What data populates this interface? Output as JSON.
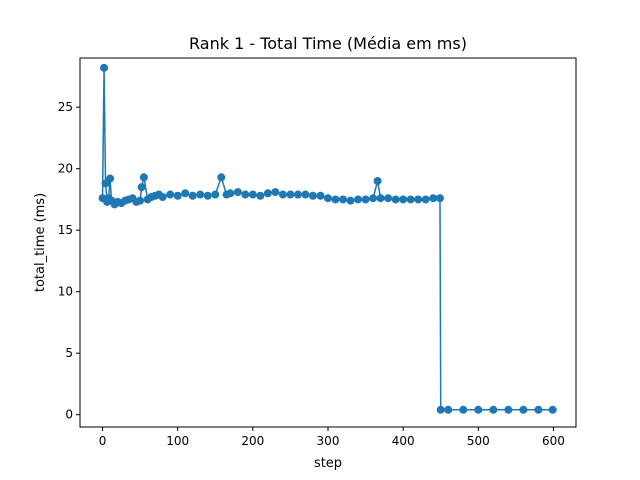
{
  "chart_data": {
    "type": "line",
    "title": "Rank 1 - Total Time (Média em ms)",
    "xlabel": "step",
    "ylabel": "total_time (ms)",
    "xlim": [
      -30,
      630
    ],
    "ylim": [
      -1,
      29
    ],
    "xticks": [
      0,
      100,
      200,
      300,
      400,
      500,
      600
    ],
    "yticks": [
      0,
      5,
      10,
      15,
      20,
      25
    ],
    "grid": false,
    "legend": "none",
    "series": [
      {
        "color": "#1f77b4",
        "marker": "circle",
        "x": [
          0,
          2,
          4,
          6,
          8,
          10,
          12,
          16,
          20,
          25,
          30,
          35,
          40,
          45,
          50,
          52,
          55,
          60,
          65,
          70,
          75,
          80,
          90,
          100,
          110,
          120,
          130,
          140,
          150,
          158,
          165,
          170,
          180,
          190,
          200,
          210,
          220,
          230,
          240,
          250,
          260,
          270,
          280,
          290,
          300,
          310,
          320,
          330,
          340,
          350,
          360,
          366,
          370,
          380,
          390,
          400,
          410,
          420,
          430,
          440,
          449,
          450,
          460,
          480,
          500,
          520,
          540,
          560,
          580,
          599
        ],
        "values": [
          17.6,
          28.2,
          18.8,
          17.3,
          17.6,
          19.2,
          17.4,
          17.1,
          17.3,
          17.2,
          17.4,
          17.5,
          17.6,
          17.3,
          17.4,
          18.5,
          19.3,
          17.5,
          17.7,
          17.8,
          17.9,
          17.7,
          17.9,
          17.8,
          18.0,
          17.8,
          17.9,
          17.8,
          17.9,
          19.3,
          17.9,
          18.0,
          18.1,
          17.9,
          17.9,
          17.8,
          18.0,
          18.1,
          17.9,
          17.9,
          17.9,
          17.9,
          17.8,
          17.8,
          17.6,
          17.5,
          17.5,
          17.4,
          17.5,
          17.5,
          17.6,
          19.0,
          17.6,
          17.6,
          17.5,
          17.5,
          17.5,
          17.5,
          17.5,
          17.6,
          17.6,
          0.4,
          0.4,
          0.4,
          0.4,
          0.4,
          0.4,
          0.4,
          0.4,
          0.4
        ]
      }
    ]
  }
}
